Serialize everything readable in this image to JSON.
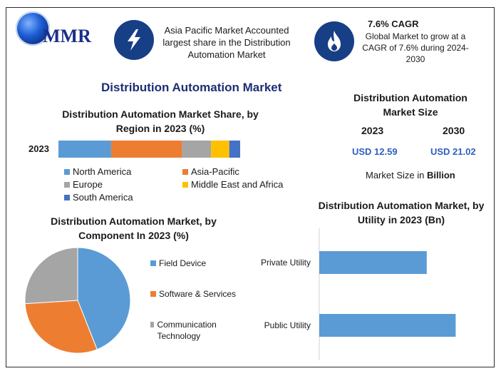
{
  "header": {
    "logo_text": "MMR",
    "info1": "Asia Pacific Market Accounted largest share in the Distribution Automation Market",
    "cagr_title": "7.6% CAGR",
    "cagr_text": "Global Market to grow at a CAGR of 7.6% during 2024-2030"
  },
  "main_title": "Distribution Automation Market",
  "icons": {
    "info1_icon": "lightning-icon",
    "cagr_icon": "flame-icon"
  },
  "colors": {
    "north_america": "#5b9bd5",
    "asia_pacific": "#ed7d31",
    "europe": "#a5a5a5",
    "middle_east_africa": "#ffc000",
    "south_america": "#4472c4",
    "icon_bg": "#173f86",
    "value_blue": "#2f5fbf"
  },
  "market_size": {
    "title": "Distribution Automation Market Size",
    "year1": "2023",
    "year2": "2030",
    "value1": "USD 12.59",
    "value2": "USD 21.02",
    "note_prefix": "Market Size in ",
    "note_bold": "Billion"
  },
  "chart_data": [
    {
      "type": "bar",
      "orientation": "horizontal-stacked",
      "title": "Distribution Automation Market Share, by Region in 2023 (%)",
      "categories": [
        "2023"
      ],
      "series": [
        {
          "name": "North America",
          "values": [
            29
          ]
        },
        {
          "name": "Asia-Pacific",
          "values": [
            39
          ]
        },
        {
          "name": "Europe",
          "values": [
            16
          ]
        },
        {
          "name": "Middle East and Africa",
          "values": [
            10
          ]
        },
        {
          "name": "South America",
          "values": [
            6
          ]
        }
      ],
      "legend_position": "bottom"
    },
    {
      "type": "pie",
      "title": "Distribution Automation Market, by Component In 2023 (%)",
      "labels": [
        "Field Device",
        "Software & Services",
        "Communication Technology"
      ],
      "values": [
        44,
        30,
        26
      ],
      "legend_position": "right"
    },
    {
      "type": "bar",
      "orientation": "horizontal",
      "title": "Distribution Automation Market, by Utility in 2023 (Bn)",
      "categories": [
        "Private Utility",
        "Public Utility"
      ],
      "values": [
        5.2,
        6.6
      ],
      "xlim": [
        0,
        8
      ]
    }
  ]
}
